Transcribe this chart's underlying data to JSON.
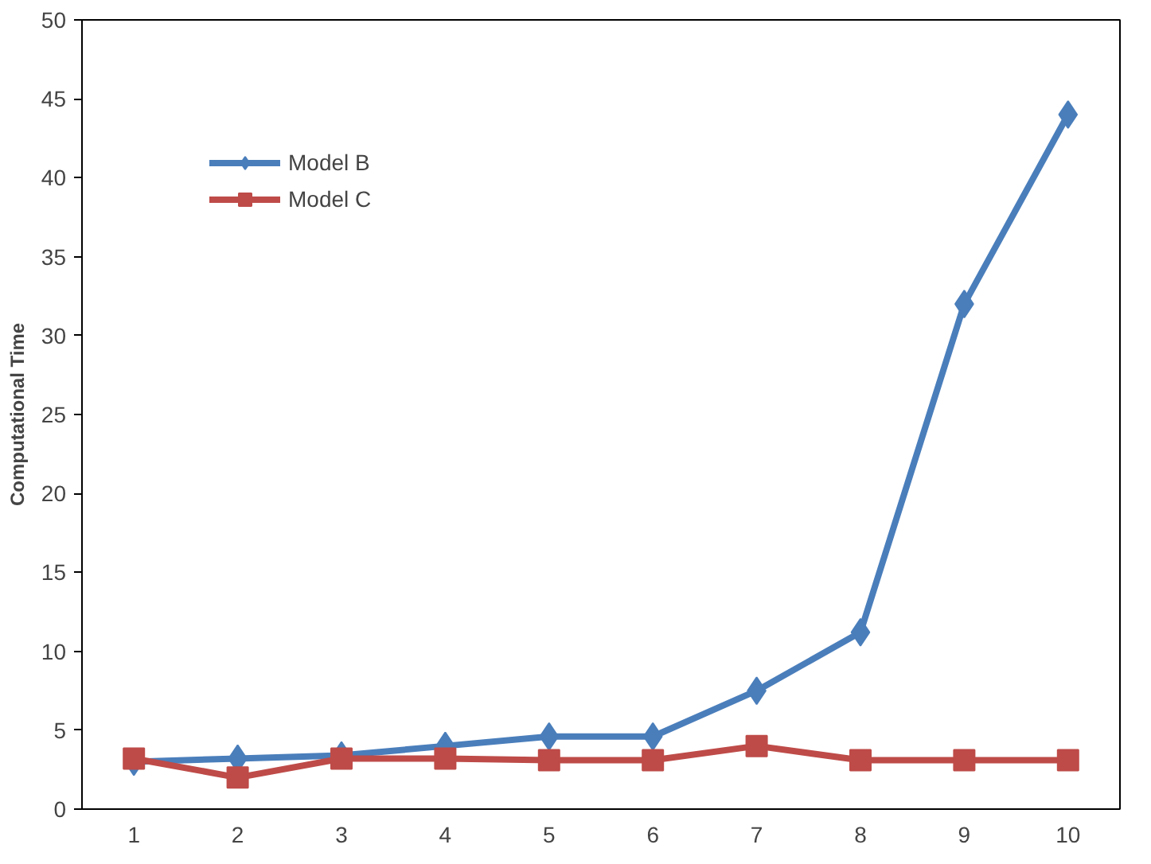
{
  "chart_data": {
    "type": "line",
    "ylabel": "Computational Time",
    "categories": [
      "1",
      "2",
      "3",
      "4",
      "5",
      "6",
      "7",
      "8",
      "9",
      "10"
    ],
    "series": [
      {
        "name": "Model B",
        "color": "#4a7ebb",
        "marker": "diamond",
        "values": [
          3.0,
          3.2,
          3.4,
          4.0,
          4.6,
          4.6,
          7.5,
          11.2,
          32,
          44
        ]
      },
      {
        "name": "Model C",
        "color": "#be4b48",
        "marker": "square",
        "values": [
          3.2,
          2.0,
          3.2,
          3.2,
          3.1,
          3.1,
          4.0,
          3.1,
          3.1,
          3.1
        ]
      }
    ],
    "ylim": [
      0,
      50
    ],
    "yticks": [
      0,
      5,
      10,
      15,
      20,
      25,
      30,
      35,
      40,
      45,
      50
    ],
    "grid": false,
    "legend": "top left"
  }
}
